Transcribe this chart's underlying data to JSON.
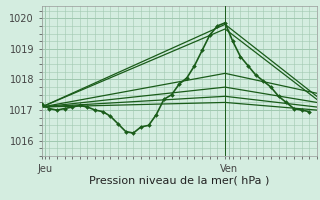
{
  "background_color": "#d4ede0",
  "grid_color": "#a0c8b0",
  "line_color": "#1a5c1a",
  "ylim": [
    1015.5,
    1020.4
  ],
  "yticks": [
    1016,
    1017,
    1018,
    1019,
    1020
  ],
  "xlabel": "Pression niveau de la mer( hPa )",
  "xlabel_fontsize": 8,
  "xtick_labels": [
    "Jeu",
    "Ven"
  ],
  "xtick_pos": [
    0.5,
    24.5
  ],
  "total_hours": 36,
  "vertical_line_x": 24,
  "main_series_x": [
    0,
    1,
    2,
    3,
    4,
    5,
    6,
    7,
    8,
    9,
    10,
    11,
    12,
    13,
    14,
    15,
    16,
    17,
    18,
    19,
    20,
    21,
    22,
    23,
    24,
    25,
    26,
    27,
    28,
    29,
    30,
    31,
    32,
    33,
    34,
    35
  ],
  "main_series_y": [
    1017.2,
    1017.05,
    1017.0,
    1017.05,
    1017.1,
    1017.15,
    1017.1,
    1017.0,
    1016.95,
    1016.8,
    1016.55,
    1016.3,
    1016.25,
    1016.45,
    1016.5,
    1016.85,
    1017.35,
    1017.5,
    1017.85,
    1018.05,
    1018.45,
    1018.95,
    1019.45,
    1019.75,
    1019.85,
    1019.25,
    1018.75,
    1018.45,
    1018.15,
    1017.95,
    1017.75,
    1017.45,
    1017.25,
    1017.05,
    1017.0,
    1016.95
  ],
  "straight_lines": [
    {
      "x": [
        0,
        24,
        36
      ],
      "y": [
        1017.1,
        1019.8,
        1017.45
      ]
    },
    {
      "x": [
        0,
        24,
        36
      ],
      "y": [
        1017.1,
        1019.65,
        1017.35
      ]
    },
    {
      "x": [
        0,
        24,
        36
      ],
      "y": [
        1017.1,
        1018.2,
        1017.55
      ]
    },
    {
      "x": [
        0,
        24,
        36
      ],
      "y": [
        1017.1,
        1017.75,
        1017.25
      ]
    },
    {
      "x": [
        0,
        24,
        36
      ],
      "y": [
        1017.1,
        1017.45,
        1017.1
      ]
    },
    {
      "x": [
        0,
        24,
        36
      ],
      "y": [
        1017.1,
        1017.25,
        1017.0
      ]
    }
  ]
}
